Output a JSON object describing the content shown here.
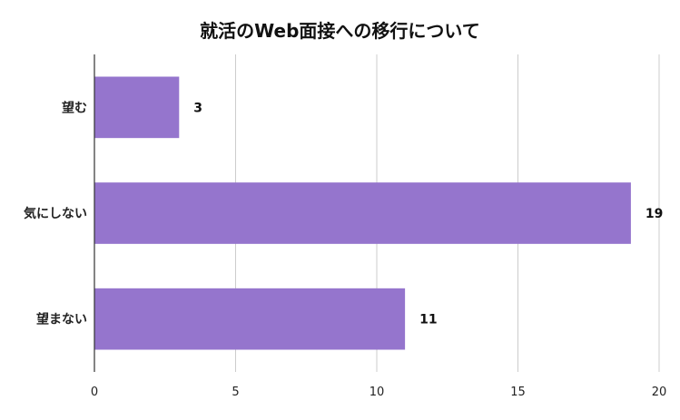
{
  "chart_data": {
    "type": "bar",
    "orientation": "horizontal",
    "title": "就活のWeb面接への移行について",
    "categories": [
      "望む",
      "気にしない",
      "望まない"
    ],
    "values": [
      3,
      19,
      11
    ],
    "xlim": [
      0,
      20
    ],
    "xticks": [
      0,
      5,
      10,
      15,
      20
    ],
    "grid": true,
    "legend": "none",
    "xlabel": "",
    "ylabel": "",
    "bar_color": "#9575cd"
  }
}
